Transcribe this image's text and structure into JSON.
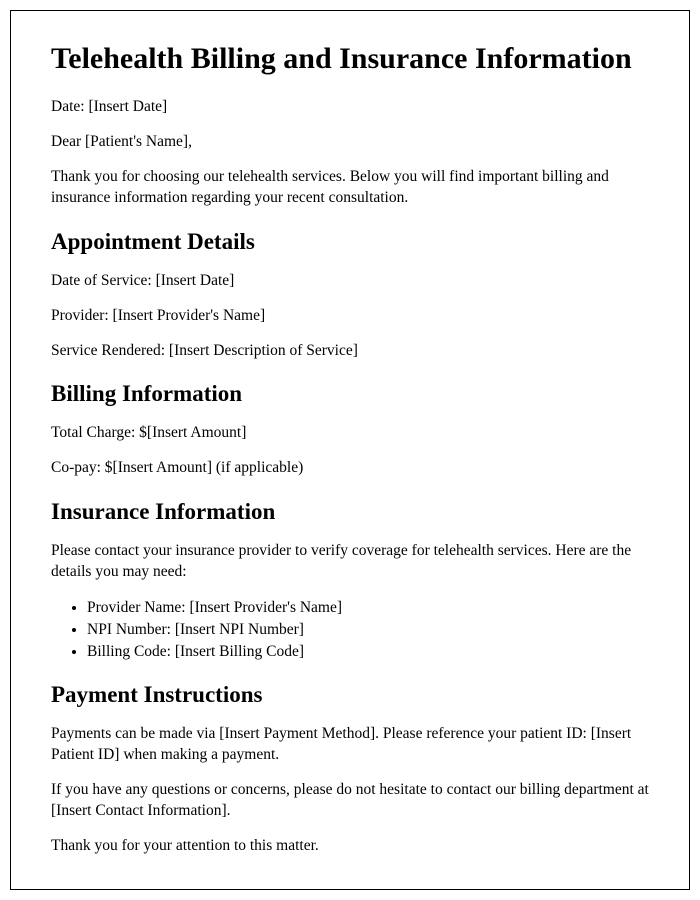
{
  "title": "Telehealth Billing and Insurance Information",
  "date_line": "Date: [Insert Date]",
  "salutation": "Dear [Patient's Name],",
  "intro": "Thank you for choosing our telehealth services. Below you will find important billing and insurance information regarding your recent consultation.",
  "sections": {
    "appointment": {
      "heading": "Appointment Details",
      "date_of_service": "Date of Service: [Insert Date]",
      "provider": "Provider: [Insert Provider's Name]",
      "service_rendered": "Service Rendered: [Insert Description of Service]"
    },
    "billing": {
      "heading": "Billing Information",
      "total_charge": "Total Charge: $[Insert Amount]",
      "copay": "Co-pay: $[Insert Amount] (if applicable)"
    },
    "insurance": {
      "heading": "Insurance Information",
      "intro": "Please contact your insurance provider to verify coverage for telehealth services. Here are the details you may need:",
      "items": {
        "provider_name": "Provider Name: [Insert Provider's Name]",
        "npi_number": "NPI Number: [Insert NPI Number]",
        "billing_code": "Billing Code: [Insert Billing Code]"
      }
    },
    "payment": {
      "heading": "Payment Instructions",
      "instructions": "Payments can be made via [Insert Payment Method]. Please reference your patient ID: [Insert Patient ID] when making a payment.",
      "contact": "If you have any questions or concerns, please do not hesitate to contact our billing department at [Insert Contact Information].",
      "closing": "Thank you for your attention to this matter."
    }
  },
  "styling": {
    "font_family": "Times New Roman",
    "border_color": "#000000",
    "background_color": "#ffffff",
    "text_color": "#000000",
    "h1_fontsize": 30,
    "h2_fontsize": 23,
    "body_fontsize": 15.5
  }
}
